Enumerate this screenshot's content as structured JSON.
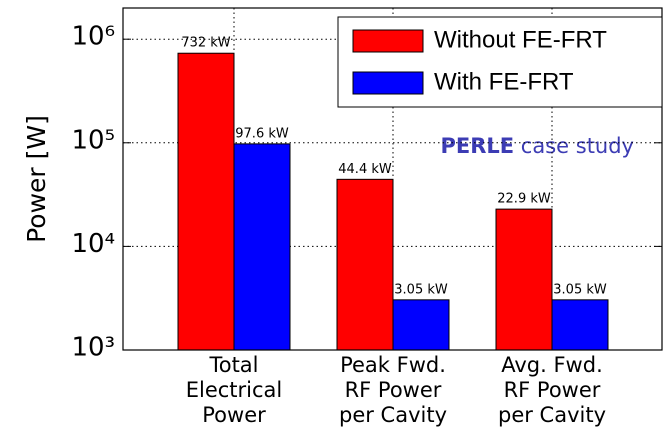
{
  "chart_data": {
    "type": "bar",
    "log_scale": true,
    "grid": true,
    "legend": "upper right",
    "ylabel": "Power [W]",
    "ylim": [
      1000,
      2000000
    ],
    "yticks": [
      {
        "value": 1000,
        "label": "10³"
      },
      {
        "value": 10000,
        "label": "10⁴"
      },
      {
        "value": 100000,
        "label": "10⁵"
      },
      {
        "value": 1000000,
        "label": "10⁶"
      }
    ],
    "categories": [
      [
        "Total",
        "Electrical",
        "Power"
      ],
      [
        "Peak Fwd.",
        "RF Power",
        "per Cavity"
      ],
      [
        "Avg. Fwd.",
        "RF Power",
        "per Cavity"
      ]
    ],
    "series": [
      {
        "name": "Without FE-FRT",
        "color": "#ff0000",
        "values": [
          732000,
          44400,
          22900
        ],
        "value_labels": [
          "732 kW",
          "44.4 kW",
          "22.9 kW"
        ]
      },
      {
        "name": "With FE-FRT",
        "color": "#0000ff",
        "values": [
          97600,
          3050,
          3050
        ],
        "value_labels": [
          "97.6 kW",
          "3.05 kW",
          "3.05 kW"
        ]
      }
    ],
    "annotation": {
      "bold": "PERLE",
      "text": "case study",
      "color": "#3c3cb4"
    }
  }
}
